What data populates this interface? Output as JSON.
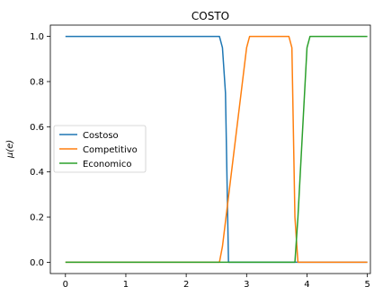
{
  "chart_data": {
    "type": "line",
    "title": "COSTO",
    "xlabel": "",
    "ylabel": "μ(e)",
    "xlim": [
      -0.25,
      5.05
    ],
    "ylim": [
      -0.05,
      1.05
    ],
    "xticks": [
      0,
      1,
      2,
      3,
      4,
      5
    ],
    "xtick_labels": [
      "0",
      "1",
      "2",
      "3",
      "4",
      "5"
    ],
    "yticks": [
      0.0,
      0.2,
      0.4,
      0.6,
      0.8,
      1.0
    ],
    "ytick_labels": [
      "0.0",
      "0.2",
      "0.4",
      "0.6",
      "0.8",
      "1.0"
    ],
    "grid": false,
    "legend_position": "center-left",
    "series": [
      {
        "name": "Costoso",
        "color": "#1f77b4",
        "x": [
          0,
          2.55,
          2.6,
          2.65,
          2.7,
          5
        ],
        "y": [
          1.0,
          1.0,
          0.95,
          0.75,
          0.0,
          0.0
        ]
      },
      {
        "name": "Competitivo",
        "color": "#ff7f0e",
        "x": [
          0,
          2.55,
          2.6,
          3.0,
          3.05,
          3.7,
          3.75,
          3.8,
          3.85,
          5
        ],
        "y": [
          0.0,
          0.0,
          0.07,
          0.95,
          1.0,
          1.0,
          0.95,
          0.2,
          0.0,
          0.0
        ]
      },
      {
        "name": "Economico",
        "color": "#2ca02c",
        "x": [
          0,
          3.8,
          3.85,
          4.0,
          4.05,
          5
        ],
        "y": [
          0.0,
          0.0,
          0.2,
          0.95,
          1.0,
          1.0
        ]
      }
    ]
  }
}
